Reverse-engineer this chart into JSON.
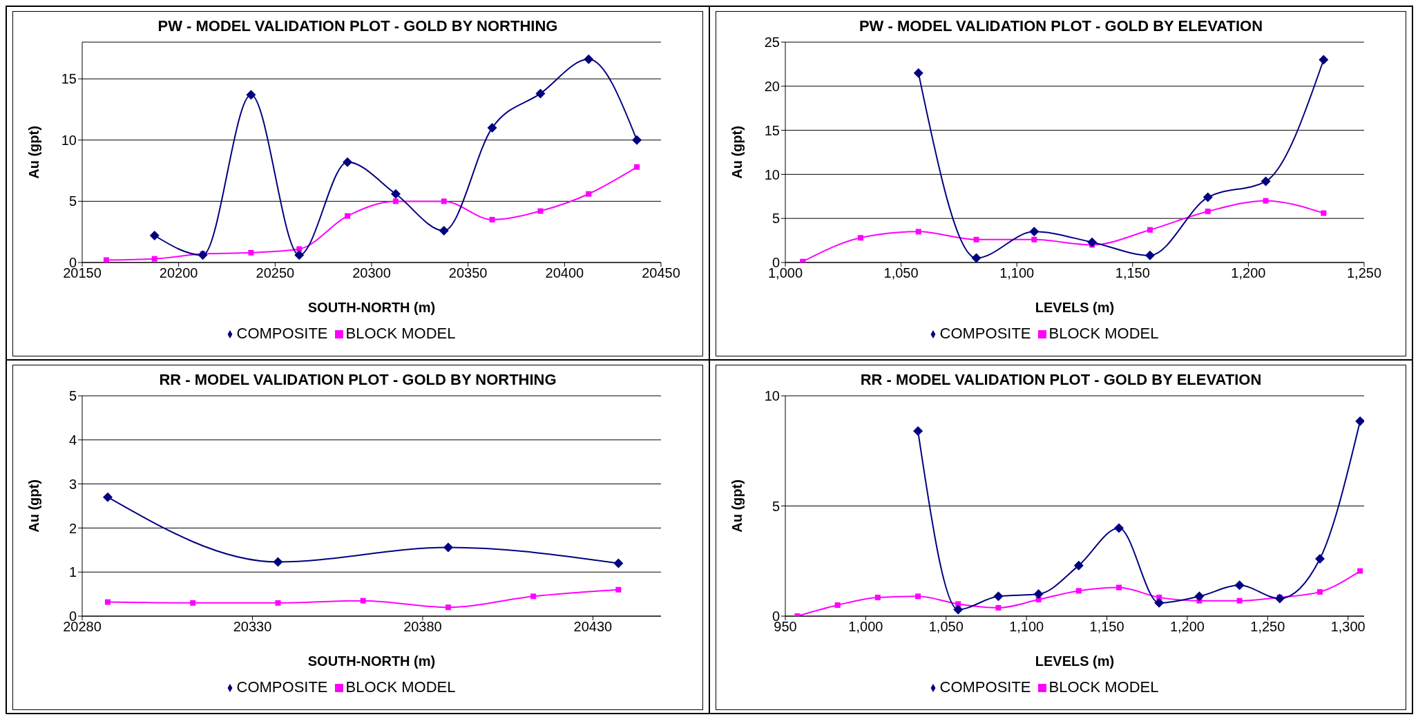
{
  "chart_data": [
    {
      "type": "line",
      "title": "PW - MODEL VALIDATION PLOT - GOLD BY NORTHING",
      "xlabel": "SOUTH-NORTH (m)",
      "ylabel": "Au (gpt)",
      "xlim": [
        20150,
        20450
      ],
      "xticks": [
        20150,
        20200,
        20250,
        20300,
        20350,
        20400,
        20450
      ],
      "ylim": [
        0,
        18
      ],
      "yticks": [
        0,
        5,
        10,
        15
      ],
      "grid": "y",
      "legend": "bottom",
      "series": [
        {
          "name": "COMPOSITE",
          "color": "#000080",
          "marker": "diamond",
          "x": [
            20187.5,
            20212.5,
            20237.5,
            20262.5,
            20287.5,
            20312.5,
            20337.5,
            20362.5,
            20387.5,
            20412.5,
            20437.5
          ],
          "values": [
            2.2,
            0.6,
            13.7,
            0.6,
            8.2,
            5.6,
            2.6,
            11,
            13.8,
            16.6,
            10
          ]
        },
        {
          "name": "BLOCK MODEL",
          "color": "#ff00ff",
          "marker": "square",
          "x": [
            20162.5,
            20187.5,
            20212.5,
            20237.5,
            20262.5,
            20287.5,
            20312.5,
            20337.5,
            20362.5,
            20387.5,
            20412.5,
            20437.5
          ],
          "values": [
            0.2,
            0.3,
            0.7,
            0.8,
            1.1,
            3.8,
            5.0,
            5.0,
            3.5,
            4.2,
            5.6,
            7.8
          ]
        }
      ]
    },
    {
      "type": "line",
      "title": "PW - MODEL VALIDATION PLOT - GOLD BY ELEVATION",
      "xlabel": "LEVELS (m)",
      "ylabel": "Au (gpt)",
      "xlim": [
        1000,
        1250
      ],
      "xticks": [
        {
          "value": 1000,
          "label": "1,000"
        },
        {
          "value": 1050,
          "label": "1,050"
        },
        {
          "value": 1100,
          "label": "1,100"
        },
        {
          "value": 1150,
          "label": "1,150"
        },
        {
          "value": 1200,
          "label": "1,200"
        },
        {
          "value": 1250,
          "label": "1,250"
        }
      ],
      "ylim": [
        0,
        25
      ],
      "yticks": [
        0,
        5,
        10,
        15,
        20,
        25
      ],
      "grid": "y",
      "legend": "bottom",
      "series": [
        {
          "name": "COMPOSITE",
          "color": "#000080",
          "marker": "diamond",
          "x": [
            1057.5,
            1082.5,
            1107.5,
            1132.5,
            1157.5,
            1182.5,
            1207.5,
            1232.5
          ],
          "values": [
            21.5,
            0.5,
            3.5,
            2.3,
            0.8,
            7.4,
            9.2,
            23
          ]
        },
        {
          "name": "BLOCK MODEL",
          "color": "#ff00ff",
          "marker": "square",
          "x": [
            1007.5,
            1032.5,
            1057.5,
            1082.5,
            1107.5,
            1132.5,
            1157.5,
            1182.5,
            1207.5,
            1232.5
          ],
          "values": [
            0.1,
            2.8,
            3.5,
            2.6,
            2.6,
            2.0,
            3.7,
            5.8,
            7.0,
            5.6
          ]
        }
      ]
    },
    {
      "type": "line",
      "title": "RR - MODEL VALIDATION PLOT - GOLD BY NORTHING",
      "xlabel": "SOUTH-NORTH (m)",
      "ylabel": "Au (gpt)",
      "xlim": [
        20280,
        20450
      ],
      "xticks": [
        20280,
        20330,
        20380,
        20430
      ],
      "ylim": [
        0,
        5
      ],
      "yticks": [
        0,
        1,
        2,
        3,
        4,
        5
      ],
      "grid": "y",
      "legend": "bottom",
      "series": [
        {
          "name": "COMPOSITE",
          "color": "#000080",
          "marker": "diamond",
          "x": [
            20287.5,
            20337.5,
            20387.5,
            20437.5
          ],
          "values": [
            2.7,
            1.23,
            1.56,
            1.2
          ]
        },
        {
          "name": "BLOCK MODEL",
          "color": "#ff00ff",
          "marker": "square",
          "x": [
            20287.5,
            20312.5,
            20337.5,
            20362.5,
            20387.5,
            20412.5,
            20437.5
          ],
          "values": [
            0.32,
            0.3,
            0.3,
            0.35,
            0.2,
            0.45,
            0.6
          ]
        }
      ]
    },
    {
      "type": "line",
      "title": "RR - MODEL VALIDATION PLOT - GOLD BY ELEVATION",
      "xlabel": "LEVELS (m)",
      "ylabel": "Au (gpt)",
      "xlim": [
        950,
        1310
      ],
      "xticks": [
        950,
        {
          "value": 1000,
          "label": "1,000"
        },
        {
          "value": 1050,
          "label": "1,050"
        },
        {
          "value": 1100,
          "label": "1,100"
        },
        {
          "value": 1150,
          "label": "1,150"
        },
        {
          "value": 1200,
          "label": "1,200"
        },
        {
          "value": 1250,
          "label": "1,250"
        },
        {
          "value": 1300,
          "label": "1,300"
        }
      ],
      "ylim": [
        0,
        10
      ],
      "yticks": [
        0,
        5,
        10
      ],
      "grid": "y",
      "legend": "bottom",
      "series": [
        {
          "name": "COMPOSITE",
          "color": "#000080",
          "marker": "diamond",
          "x": [
            1032.5,
            1057.5,
            1082.5,
            1107.5,
            1132.5,
            1157.5,
            1182.5,
            1207.5,
            1232.5,
            1257.5,
            1282.5,
            1307.5
          ],
          "values": [
            8.4,
            0.3,
            0.9,
            1.0,
            2.3,
            4.0,
            0.6,
            0.9,
            1.4,
            0.8,
            2.6,
            8.85
          ]
        },
        {
          "name": "BLOCK MODEL",
          "color": "#ff00ff",
          "marker": "square",
          "x": [
            957.5,
            982.5,
            1007.5,
            1032.5,
            1057.5,
            1082.5,
            1107.5,
            1132.5,
            1157.5,
            1182.5,
            1207.5,
            1232.5,
            1257.5,
            1282.5,
            1307.5
          ],
          "values": [
            0,
            0.5,
            0.85,
            0.9,
            0.55,
            0.38,
            0.75,
            1.15,
            1.3,
            0.85,
            0.7,
            0.7,
            0.85,
            1.1,
            2.05
          ]
        }
      ]
    }
  ]
}
